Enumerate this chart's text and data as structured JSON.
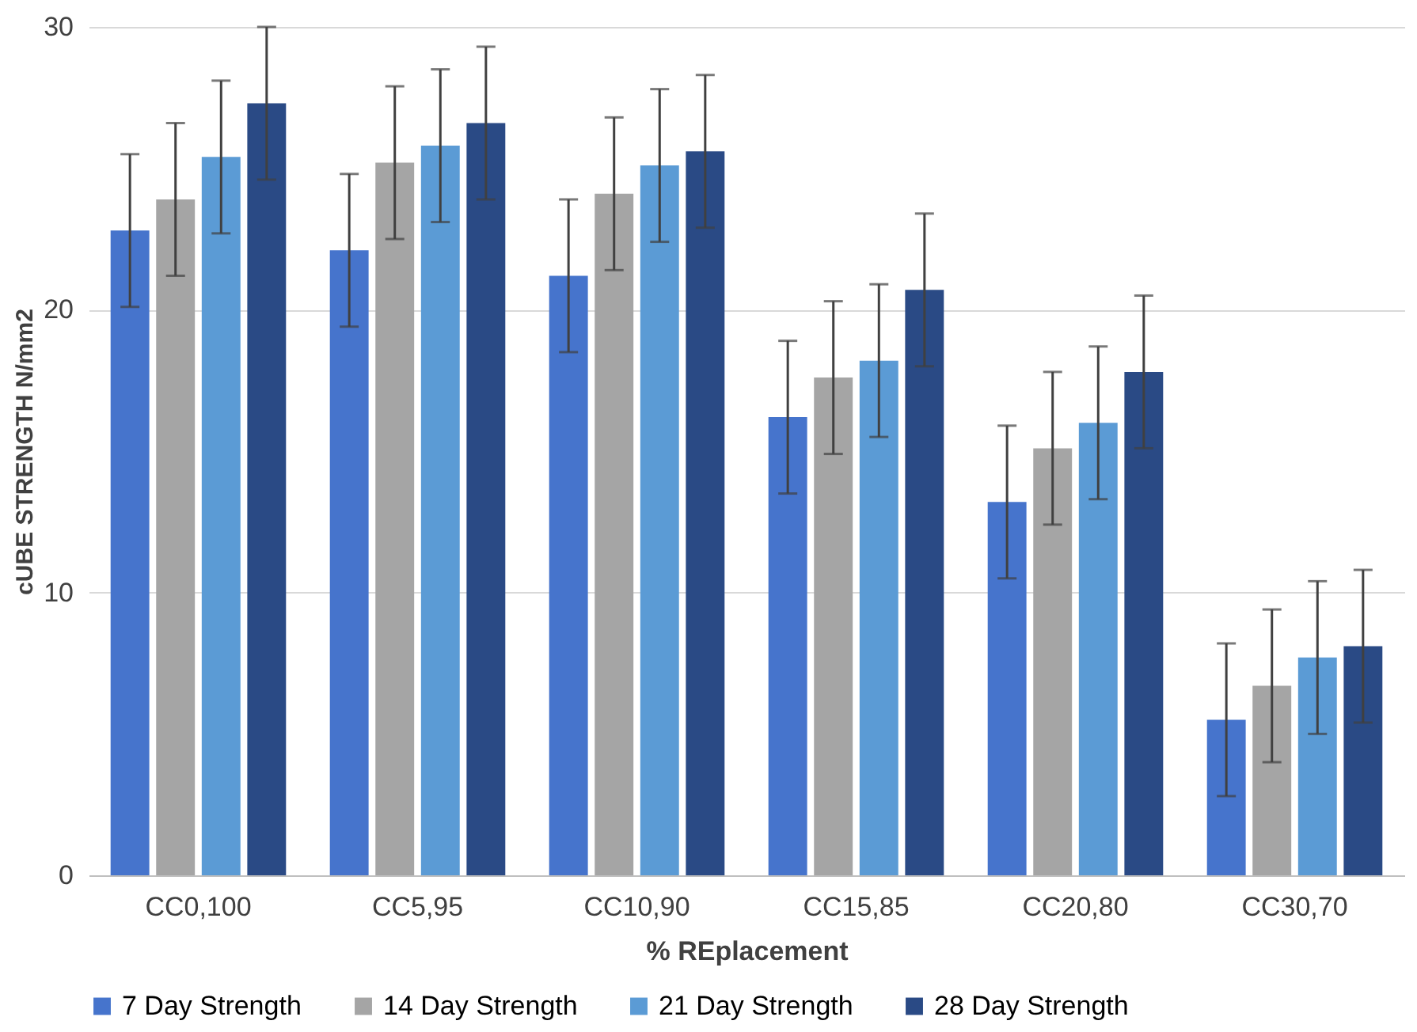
{
  "chart_data": {
    "type": "bar",
    "xlabel": "% REplacement",
    "ylabel": "cUBE STRENGTH N/mm2",
    "categories": [
      "CC0,100",
      "CC5,95",
      "CC10,90",
      "CC15,85",
      "CC20,80",
      "CC30,70"
    ],
    "series": [
      {
        "name": "7 Day Strength",
        "color": "#4674cc",
        "values": [
          22.8,
          22.1,
          21.2,
          16.2,
          13.2,
          5.5
        ],
        "errors": [
          2.7,
          2.7,
          2.7,
          2.7,
          2.7,
          2.7
        ]
      },
      {
        "name": "14 Day Strength",
        "color": "#a5a5a5",
        "values": [
          23.9,
          25.2,
          24.1,
          17.6,
          15.1,
          6.7
        ],
        "errors": [
          2.7,
          2.7,
          2.7,
          2.7,
          2.7,
          2.7
        ]
      },
      {
        "name": "21 Day Strength",
        "color": "#5b9bd5",
        "values": [
          25.4,
          25.8,
          25.1,
          18.2,
          16.0,
          7.7
        ],
        "errors": [
          2.7,
          2.7,
          2.7,
          2.7,
          2.7,
          2.7
        ]
      },
      {
        "name": "28 Day Strength",
        "color": "#2a4a85",
        "values": [
          27.3,
          26.6,
          25.6,
          20.7,
          17.8,
          8.1
        ],
        "errors": [
          2.7,
          2.7,
          2.7,
          2.7,
          2.7,
          2.7
        ]
      }
    ],
    "ylim": [
      0,
      30
    ],
    "yticks": [
      0,
      10,
      20,
      30
    ],
    "grid": "y",
    "legend": "bottom"
  }
}
